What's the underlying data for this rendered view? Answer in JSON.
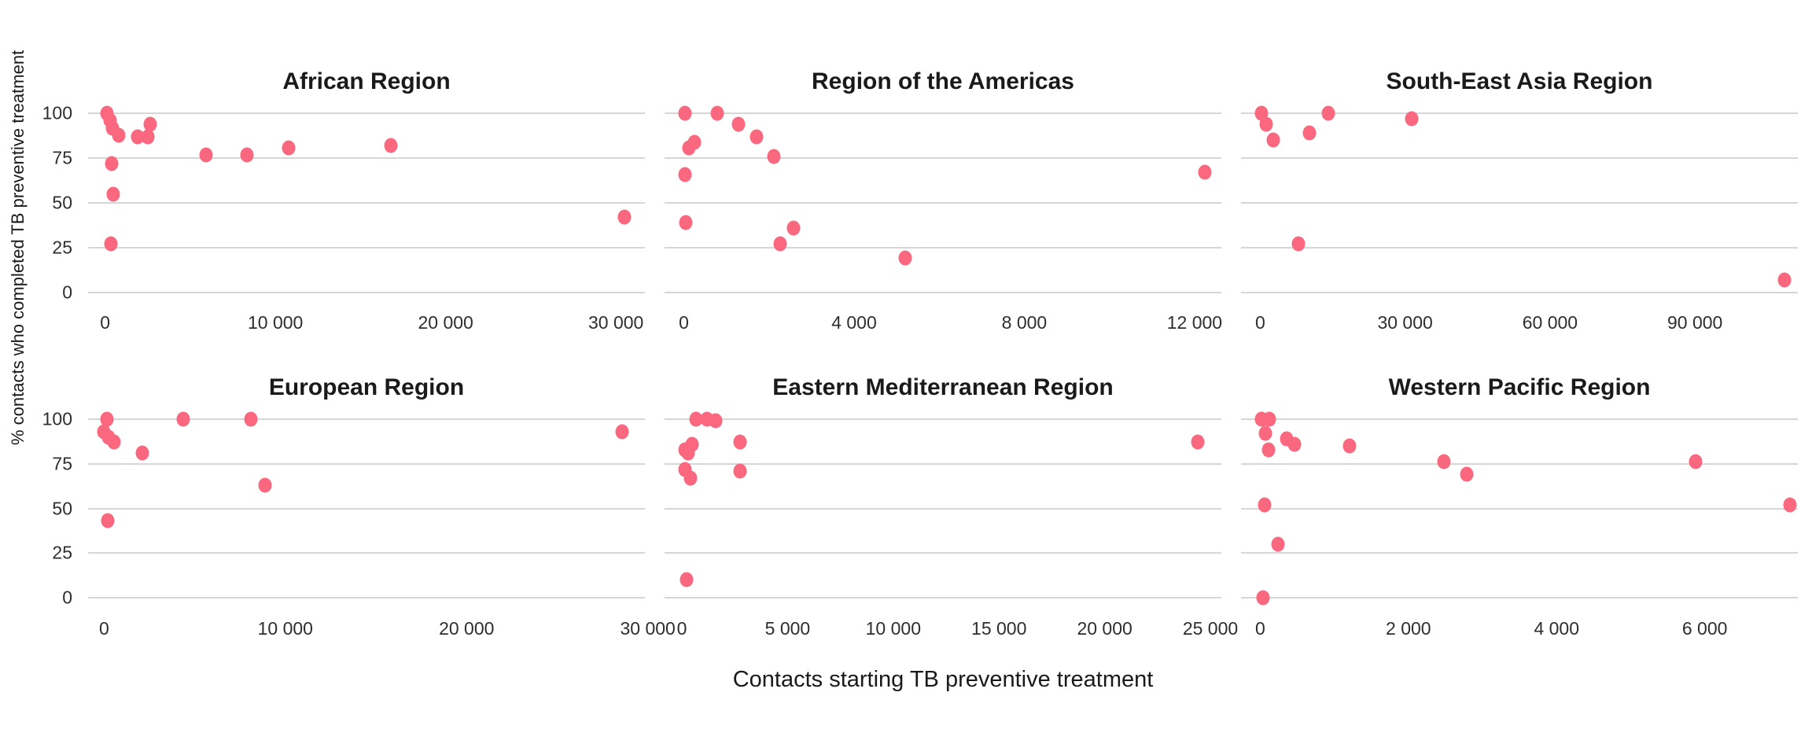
{
  "chart_data": {
    "type": "scatter",
    "x_axis_title": "Contacts starting TB preventive treatment",
    "y_axis_title": "% contacts who completed TB preventive treatment",
    "y_ticks": [
      100,
      75,
      50,
      25,
      0
    ],
    "y_range": [
      -5,
      105
    ],
    "grid": "horizontal-only",
    "legend": "none",
    "point_color": "#F9687E",
    "grid_color": "#D6D6D6",
    "panels": [
      {
        "title": "African Region",
        "row": 0,
        "col": 0,
        "x_domain": [
          -1000,
          31700
        ],
        "x_ticks": [
          {
            "value": 0,
            "label": "0"
          },
          {
            "value": 10000,
            "label": "10 000"
          },
          {
            "value": 20000,
            "label": "20 000"
          },
          {
            "value": 30000,
            "label": "30 000"
          }
        ],
        "points": [
          [
            90,
            100
          ],
          [
            280,
            96
          ],
          [
            420,
            92
          ],
          [
            780,
            88
          ],
          [
            1890,
            87
          ],
          [
            2500,
            87
          ],
          [
            2650,
            94
          ],
          [
            5930,
            77
          ],
          [
            8310,
            77
          ],
          [
            10800,
            81
          ],
          [
            16800,
            82
          ],
          [
            400,
            72
          ],
          [
            475,
            55
          ],
          [
            330,
            27
          ],
          [
            30500,
            42
          ]
        ]
      },
      {
        "title": "Region of the Americas",
        "row": 0,
        "col": 1,
        "x_domain": [
          -453,
          12630
        ],
        "x_ticks": [
          {
            "value": 0,
            "label": "0"
          },
          {
            "value": 4000,
            "label": "4 000"
          },
          {
            "value": 8000,
            "label": "8 000"
          },
          {
            "value": 12000,
            "label": "12 000"
          }
        ],
        "points": [
          [
            20,
            100
          ],
          [
            790,
            100
          ],
          [
            1290,
            94
          ],
          [
            1700,
            87
          ],
          [
            250,
            84
          ],
          [
            120,
            81
          ],
          [
            2120,
            76
          ],
          [
            20,
            66
          ],
          [
            12250,
            67
          ],
          [
            50,
            39
          ],
          [
            2570,
            36
          ],
          [
            2260,
            27
          ],
          [
            5200,
            19
          ]
        ]
      },
      {
        "title": "South-East Asia Region",
        "row": 0,
        "col": 2,
        "x_domain": [
          -3970,
          111300
        ],
        "x_ticks": [
          {
            "value": 0,
            "label": "0"
          },
          {
            "value": 30000,
            "label": "30 000"
          },
          {
            "value": 60000,
            "label": "60 000"
          },
          {
            "value": 90000,
            "label": "90 000"
          }
        ],
        "points": [
          [
            310,
            100
          ],
          [
            1300,
            94
          ],
          [
            2700,
            85
          ],
          [
            10200,
            89
          ],
          [
            14100,
            100
          ],
          [
            31300,
            97
          ],
          [
            7900,
            27
          ],
          [
            108500,
            7
          ]
        ]
      },
      {
        "title": "European Region",
        "row": 1,
        "col": 0,
        "x_domain": [
          -885,
          29840
        ],
        "x_ticks": [
          {
            "value": 0,
            "label": "0"
          },
          {
            "value": 10000,
            "label": "10 000"
          },
          {
            "value": 20000,
            "label": "20 000"
          },
          {
            "value": 30000,
            "label": "30 000"
          }
        ],
        "points": [
          [
            140,
            100
          ],
          [
            0,
            93
          ],
          [
            250,
            90
          ],
          [
            550,
            87
          ],
          [
            2090,
            81
          ],
          [
            4350,
            100
          ],
          [
            8090,
            100
          ],
          [
            8870,
            63
          ],
          [
            200,
            43
          ],
          [
            28600,
            93
          ]
        ]
      },
      {
        "title": "Eastern Mediterranean Region",
        "row": 1,
        "col": 1,
        "x_domain": [
          -820,
          25520
        ],
        "x_ticks": [
          {
            "value": 0,
            "label": "0"
          },
          {
            "value": 5000,
            "label": "5 000"
          },
          {
            "value": 10000,
            "label": "10 000"
          },
          {
            "value": 15000,
            "label": "15 000"
          },
          {
            "value": 20000,
            "label": "20 000"
          },
          {
            "value": 25000,
            "label": "25 000"
          }
        ],
        "points": [
          [
            660,
            100
          ],
          [
            1180,
            100
          ],
          [
            1615,
            99
          ],
          [
            2740,
            87
          ],
          [
            490,
            86
          ],
          [
            140,
            83
          ],
          [
            310,
            81
          ],
          [
            150,
            72
          ],
          [
            420,
            67
          ],
          [
            2740,
            71
          ],
          [
            24400,
            87
          ],
          [
            230,
            10
          ]
        ]
      },
      {
        "title": "Western Pacific Region",
        "row": 1,
        "col": 2,
        "x_domain": [
          -259,
          7256
        ],
        "x_ticks": [
          {
            "value": 0,
            "label": "0"
          },
          {
            "value": 2000,
            "label": "2 000"
          },
          {
            "value": 4000,
            "label": "4 000"
          },
          {
            "value": 6000,
            "label": "6 000"
          }
        ],
        "points": [
          [
            20,
            100
          ],
          [
            120,
            100
          ],
          [
            70,
            92
          ],
          [
            110,
            83
          ],
          [
            360,
            89
          ],
          [
            460,
            86
          ],
          [
            1210,
            85
          ],
          [
            2480,
            76
          ],
          [
            2790,
            69
          ],
          [
            60,
            52
          ],
          [
            240,
            30
          ],
          [
            40,
            0
          ],
          [
            5880,
            76
          ],
          [
            7150,
            52
          ]
        ]
      }
    ]
  }
}
